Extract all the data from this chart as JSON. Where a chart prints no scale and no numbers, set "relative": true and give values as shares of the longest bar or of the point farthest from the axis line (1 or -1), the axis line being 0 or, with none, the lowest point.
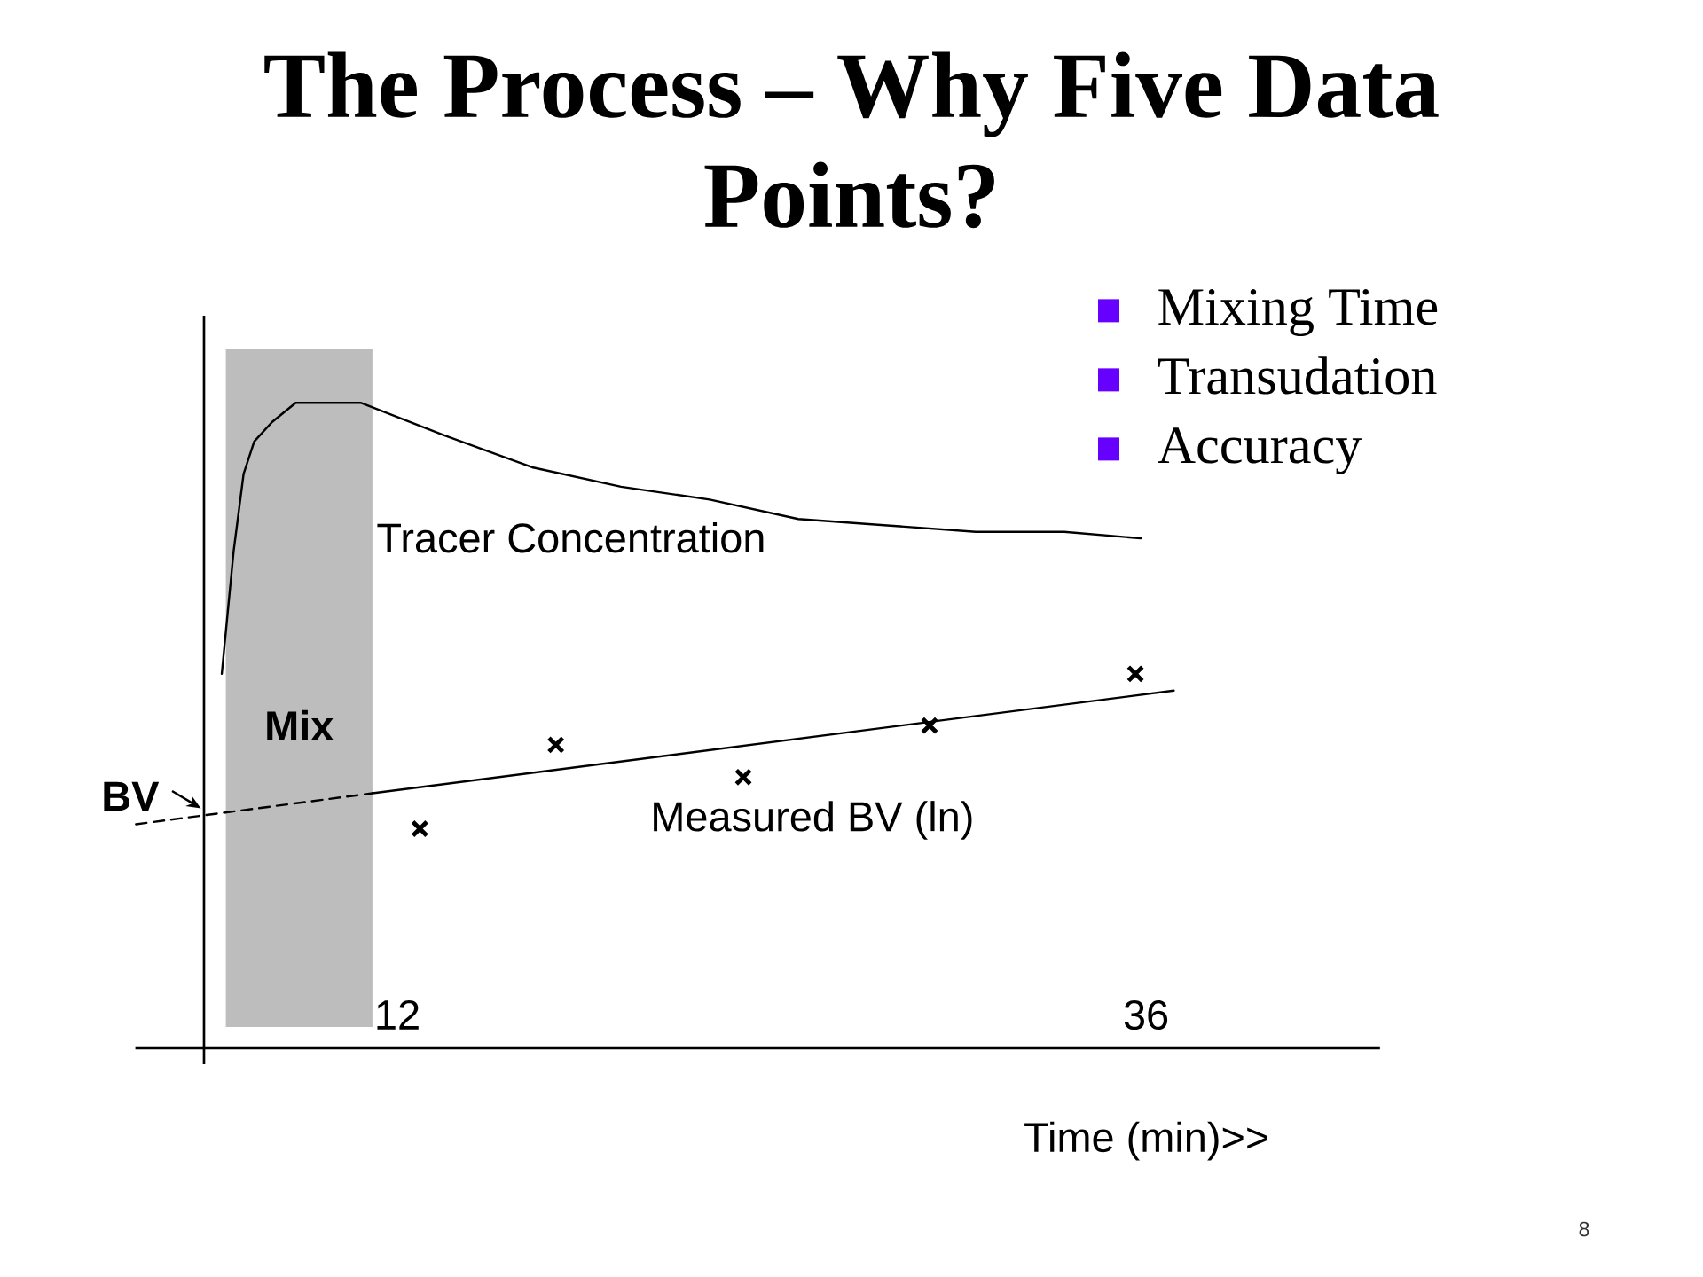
{
  "chart_data": {
    "type": "line",
    "title": "The Process – Why Five Data Points?",
    "xlabel": "Time (min)>>",
    "relative": true,
    "xlim": [
      3.6,
      43.5
    ],
    "xticks": [
      12,
      36
    ],
    "series": [
      {
        "name": "Tracer Concentration",
        "color": "#000000",
        "x": [
          6.37,
          6.75,
          7.07,
          7.41,
          7.98,
          8.74,
          9.5,
          10.82,
          13.48,
          16.32,
          19.17,
          22.01,
          24.85,
          27.7,
          30.54,
          33.38,
          35.83
        ],
        "values": [
          0.58,
          0.77,
          0.89,
          0.94,
          0.97,
          1.0,
          1.0,
          1.0,
          0.95,
          0.9,
          0.87,
          0.85,
          0.82,
          0.81,
          0.8,
          0.8,
          0.79
        ]
      },
      {
        "name": "Measured BV (ln)",
        "color": "#000000",
        "x": [
          11.2,
          36.89
        ],
        "values": [
          0.395,
          0.554
        ]
      },
      {
        "type": "line",
        "line_style": "dashed",
        "color": "#000000",
        "x": [
          3.62,
          11.2
        ],
        "values": [
          0.347,
          0.395
        ]
      },
      {
        "type": "scatter",
        "marker": "cross",
        "color": "#000000",
        "x": [
          12.72,
          17.08,
          23.09,
          29.06,
          35.66
        ],
        "values": [
          0.34,
          0.47,
          0.42,
          0.5,
          0.58
        ]
      }
    ],
    "ref_lines": [
      {
        "axis": "x",
        "value": 5.8,
        "color": "#000000"
      }
    ],
    "bands": [
      {
        "axis": "x",
        "from": 6.5,
        "to": 11.2,
        "label": "Mix",
        "color": "#bdbdbd"
      }
    ],
    "annotations": [
      {
        "text": "BV",
        "x": 5.8,
        "y": 0.36
      },
      "Mixing Time",
      "Transudation",
      "Accuracy",
      "8"
    ]
  }
}
